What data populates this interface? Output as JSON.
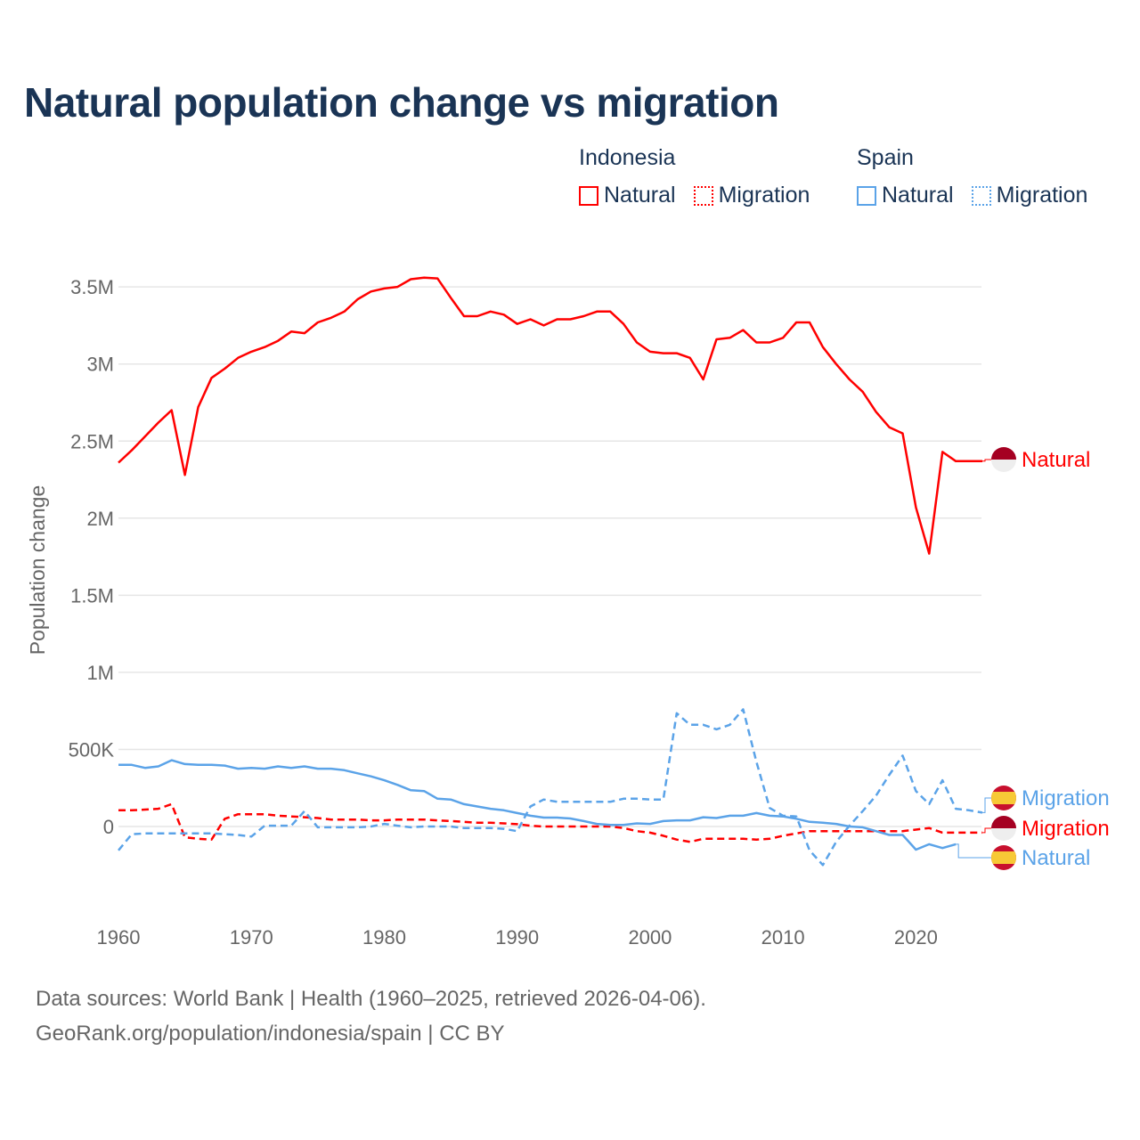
{
  "title": "Natural population change vs migration",
  "legend": {
    "groups": [
      {
        "name": "Indonesia",
        "items": [
          {
            "label": "Natural",
            "style": "solid"
          },
          {
            "label": "Migration",
            "style": "dotted"
          }
        ],
        "color": "#ff0000"
      },
      {
        "name": "Spain",
        "items": [
          {
            "label": "Natural",
            "style": "solid"
          },
          {
            "label": "Migration",
            "style": "dotted"
          }
        ],
        "color": "#5ba3e8"
      }
    ]
  },
  "footer": {
    "line1": "Data sources: World Bank | Health (1960–2025, retrieved 2026-04-06).",
    "line2": "GeoRank.org/population/indonesia/spain | CC BY"
  },
  "chart_data": {
    "type": "line",
    "title": "Natural population change vs migration",
    "xlabel": "",
    "ylabel": "Population change",
    "xlim": [
      1960,
      2025
    ],
    "ylim": [
      -0.5,
      3.5
    ],
    "y_unit": "millions",
    "x_ticks": [
      "1960",
      "1970",
      "1980",
      "1990",
      "2000",
      "2010",
      "2020"
    ],
    "y_ticks": [
      {
        "v": 0,
        "label": "0"
      },
      {
        "v": 0.5,
        "label": "500K"
      },
      {
        "v": 1,
        "label": "1M"
      },
      {
        "v": 1.5,
        "label": "1.5M"
      },
      {
        "v": 2,
        "label": "2M"
      },
      {
        "v": 2.5,
        "label": "2.5M"
      },
      {
        "v": 3,
        "label": "3M"
      },
      {
        "v": 3.5,
        "label": "3.5M"
      }
    ],
    "grid": true,
    "series": [
      {
        "name": "Indonesia Natural",
        "end_label": "Natural",
        "flag": "indonesia",
        "color": "#ff0000",
        "dash": false,
        "start": 1960,
        "values": [
          2.36,
          2.44,
          2.53,
          2.62,
          2.7,
          2.28,
          2.72,
          2.91,
          2.97,
          3.04,
          3.08,
          3.11,
          3.15,
          3.21,
          3.2,
          3.27,
          3.3,
          3.34,
          3.42,
          3.47,
          3.49,
          3.5,
          3.55,
          3.56,
          3.555,
          3.43,
          3.31,
          3.31,
          3.34,
          3.32,
          3.26,
          3.29,
          3.25,
          3.29,
          3.29,
          3.31,
          3.34,
          3.34,
          3.26,
          3.14,
          3.08,
          3.07,
          3.07,
          3.04,
          2.9,
          3.16,
          3.17,
          3.22,
          3.14,
          3.14,
          3.17,
          3.27,
          3.27,
          3.11,
          3.0,
          2.9,
          2.82,
          2.69,
          2.59,
          2.55,
          2.07,
          1.77,
          2.43,
          2.37,
          2.37,
          2.37
        ]
      },
      {
        "name": "Indonesia Migration",
        "end_label": "Migration",
        "flag": "indonesia",
        "color": "#ff0000",
        "dash": true,
        "start": 1960,
        "values": [
          0.105,
          0.105,
          0.11,
          0.115,
          0.145,
          -0.07,
          -0.08,
          -0.085,
          0.05,
          0.08,
          0.08,
          0.08,
          0.07,
          0.065,
          0.06,
          0.055,
          0.045,
          0.045,
          0.045,
          0.04,
          0.04,
          0.045,
          0.045,
          0.045,
          0.04,
          0.035,
          0.03,
          0.025,
          0.025,
          0.02,
          0.015,
          0.005,
          0,
          0,
          0,
          0,
          0,
          0,
          -0.01,
          -0.03,
          -0.04,
          -0.06,
          -0.085,
          -0.1,
          -0.08,
          -0.08,
          -0.08,
          -0.08,
          -0.085,
          -0.08,
          -0.06,
          -0.045,
          -0.03,
          -0.03,
          -0.03,
          -0.03,
          -0.03,
          -0.03,
          -0.03,
          -0.03,
          -0.02,
          -0.01,
          -0.04,
          -0.04,
          -0.04,
          -0.04
        ]
      },
      {
        "name": "Spain Natural",
        "end_label": "Natural",
        "flag": "spain",
        "color": "#5ba3e8",
        "dash": false,
        "start": 1960,
        "values": [
          0.4,
          0.4,
          0.38,
          0.39,
          0.43,
          0.405,
          0.4,
          0.4,
          0.395,
          0.375,
          0.38,
          0.375,
          0.39,
          0.38,
          0.39,
          0.375,
          0.375,
          0.365,
          0.345,
          0.325,
          0.3,
          0.27,
          0.235,
          0.23,
          0.18,
          0.175,
          0.145,
          0.13,
          0.115,
          0.105,
          0.087,
          0.07,
          0.058,
          0.058,
          0.052,
          0.035,
          0.017,
          0.01,
          0.01,
          0.02,
          0.017,
          0.035,
          0.04,
          0.04,
          0.06,
          0.055,
          0.07,
          0.07,
          0.087,
          0.07,
          0.065,
          0.05,
          0.03,
          0.025,
          0.017,
          0,
          -0.005,
          -0.03,
          -0.055,
          -0.055,
          -0.15,
          -0.115,
          -0.14,
          -0.115
        ]
      },
      {
        "name": "Spain Migration",
        "end_label": "Migration",
        "flag": "spain",
        "color": "#5ba3e8",
        "dash": true,
        "start": 1960,
        "values": [
          -0.155,
          -0.05,
          -0.045,
          -0.045,
          -0.045,
          -0.045,
          -0.045,
          -0.045,
          -0.05,
          -0.055,
          -0.065,
          0.005,
          0.005,
          0.005,
          0.1,
          -0.005,
          -0.005,
          -0.005,
          -0.005,
          0,
          0.017,
          0.005,
          -0.005,
          0,
          0,
          0,
          -0.01,
          -0.01,
          -0.01,
          -0.015,
          -0.03,
          0.13,
          0.175,
          0.16,
          0.16,
          0.16,
          0.16,
          0.16,
          0.18,
          0.18,
          0.175,
          0.175,
          0.735,
          0.66,
          0.66,
          0.63,
          0.66,
          0.76,
          0.42,
          0.12,
          0.07,
          0.065,
          -0.155,
          -0.25,
          -0.1,
          0.005,
          0.1,
          0.2,
          0.335,
          0.46,
          0.23,
          0.145,
          0.3,
          0.115,
          0.105,
          0.09
        ]
      }
    ]
  }
}
